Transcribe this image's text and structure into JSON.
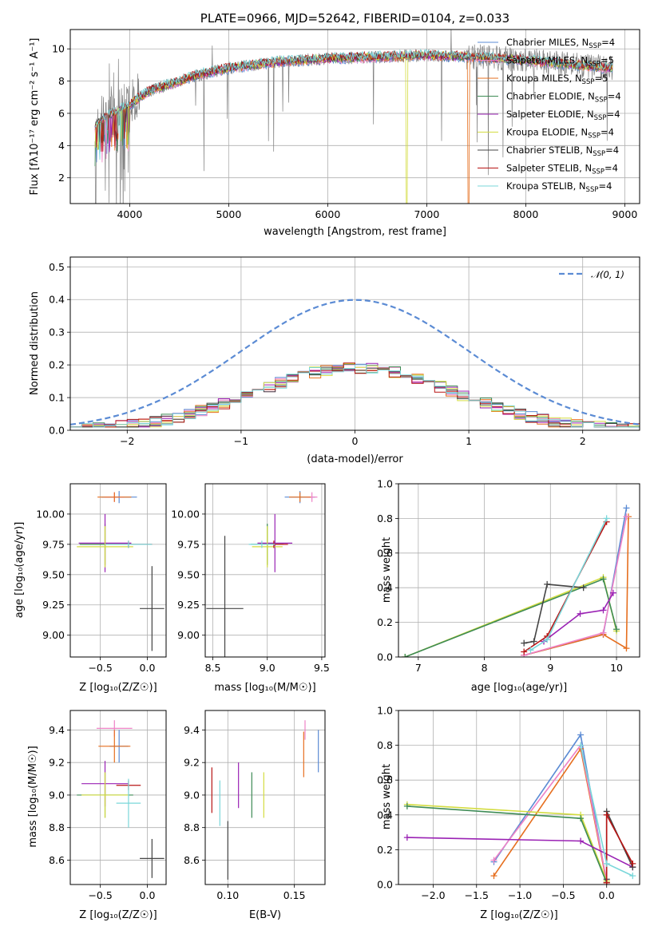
{
  "colors": {
    "Chabrier MILES": "#5b8bd4",
    "Salpeter MILES": "#ee82c6",
    "Kroupa MILES": "#e66f1f",
    "Chabrier ELODIE": "#3e8b55",
    "Salpeter ELODIE": "#9a22b4",
    "Kroupa ELODIE": "#d3dc40",
    "Chabrier STELIB": "#444444",
    "Salpeter STELIB": "#b81414",
    "Kroupa STELIB": "#7ad7da"
  },
  "chart_data": [
    {
      "type": "line",
      "id": "spectrum",
      "title": "PLATE=0966, MJD=52642, FIBERID=0104, z=0.033",
      "xlabel": "wavelength [Angstrom, rest frame]",
      "ylabel": "Flux [fλ10⁻¹⁷ erg cm⁻² s⁻¹ A⁻¹]",
      "xlim": [
        3400,
        9150
      ],
      "ylim": [
        0.4,
        11.2
      ],
      "xticks": [
        4000,
        5000,
        6000,
        7000,
        8000,
        9000
      ],
      "yticks": [
        2,
        4,
        6,
        8,
        10
      ],
      "legend_position": "top-right",
      "legend": [
        {
          "name": "Chabrier MILES",
          "label": "Chabrier MILES, N",
          "sub": "SSP",
          "suffix": "=4"
        },
        {
          "name": "Salpeter MILES",
          "label": "Salpeter MILES, N",
          "sub": "SSP",
          "suffix": "=5"
        },
        {
          "name": "Kroupa MILES",
          "label": "Kroupa MILES, N",
          "sub": "SSP",
          "suffix": "=5"
        },
        {
          "name": "Chabrier ELODIE",
          "label": "Chabrier ELODIE, N",
          "sub": "SSP",
          "suffix": "=4"
        },
        {
          "name": "Salpeter ELODIE",
          "label": "Salpeter ELODIE, N",
          "sub": "SSP",
          "suffix": "=4"
        },
        {
          "name": "Kroupa ELODIE",
          "label": "Kroupa ELODIE, N",
          "sub": "SSP",
          "suffix": "=4"
        },
        {
          "name": "Chabrier STELIB",
          "label": "Chabrier STELIB, N",
          "sub": "SSP",
          "suffix": "=4"
        },
        {
          "name": "Salpeter STELIB",
          "label": "Salpeter STELIB, N",
          "sub": "SSP",
          "suffix": "=4"
        },
        {
          "name": "Kroupa STELIB",
          "label": "Kroupa STELIB, N",
          "sub": "SSP",
          "suffix": "=4"
        }
      ],
      "continuum": {
        "x": [
          3650,
          3700,
          3800,
          3900,
          4000,
          4100,
          4200,
          4300,
          4400,
          4500,
          4700,
          5000,
          5500,
          6000,
          6500,
          7000,
          7500,
          8000,
          8500,
          8850
        ],
        "y": [
          5.2,
          5.5,
          5.9,
          6.2,
          6.5,
          7.0,
          7.4,
          7.6,
          7.8,
          8.0,
          8.4,
          8.8,
          9.2,
          9.4,
          9.5,
          9.6,
          9.5,
          9.3,
          9.0,
          8.8
        ]
      },
      "data_spectrum_color": "#808080",
      "deep_features": [
        {
          "model": "Kroupa ELODIE",
          "x": 6800,
          "ymin": 0.4
        },
        {
          "model": "Kroupa MILES",
          "x": 7420,
          "ymin": 0.4
        }
      ]
    },
    {
      "type": "histogram",
      "id": "residuals",
      "xlabel": "(data-model)/error",
      "ylabel": "Normed distribution",
      "xlim": [
        -2.5,
        2.5
      ],
      "ylim": [
        0,
        0.53
      ],
      "xticks": [
        -2,
        -1,
        0,
        1,
        2
      ],
      "yticks": [
        0.0,
        0.1,
        0.2,
        0.3,
        0.4,
        0.5
      ],
      "bin_width": 0.1,
      "reference": {
        "name": "N(0,1)",
        "label": "𝒩(0, 1)",
        "color": "#5b8bd4",
        "style": "dashed",
        "mean": 0,
        "sigma": 1
      },
      "legend_position": "top-right"
    },
    {
      "type": "scatter",
      "id": "age-vs-Z",
      "xlabel": "Z [log₁₀(Z/Z☉)]",
      "ylabel": "age  [log₁₀(age/yr)]",
      "xlim": [
        -0.82,
        0.2
      ],
      "ylim": [
        8.82,
        10.25
      ],
      "xticks": [
        -0.5,
        0.0
      ],
      "yticks": [
        9.0,
        9.25,
        9.5,
        9.75,
        10.0
      ],
      "points": [
        {
          "model": "Chabrier MILES",
          "x": -0.3,
          "xerr": 0.19,
          "y": 10.14,
          "yerr": 0.05
        },
        {
          "model": "Salpeter MILES",
          "x": -0.35,
          "xerr": 0.1,
          "y": 10.14,
          "yerr": 0.04
        },
        {
          "model": "Kroupa MILES",
          "x": -0.35,
          "xerr": 0.18,
          "y": 10.14,
          "yerr": 0.04
        },
        {
          "model": "Chabrier ELODIE",
          "x": -0.45,
          "xerr": 0.27,
          "y": 9.75,
          "yerr": 0.17
        },
        {
          "model": "Salpeter ELODIE",
          "x": -0.45,
          "xerr": 0.28,
          "y": 9.76,
          "yerr": 0.24
        },
        {
          "model": "Kroupa ELODIE",
          "x": -0.45,
          "xerr": 0.3,
          "y": 9.73,
          "yerr": 0.17
        },
        {
          "model": "Chabrier STELIB",
          "x": 0.05,
          "xerr": 0.13,
          "y": 9.22,
          "yerr": 0.35
        },
        {
          "model": "Salpeter STELIB",
          "x": -0.2,
          "xerr": 0.25,
          "y": 9.75,
          "yerr": 0.03
        },
        {
          "model": "Kroupa STELIB",
          "x": -0.2,
          "xerr": 0.25,
          "y": 9.75,
          "yerr": 0.03
        }
      ]
    },
    {
      "type": "scatter",
      "id": "age-vs-mass",
      "xlabel": "mass [log₁₀(M/M☉)]",
      "xlim": [
        8.43,
        9.53
      ],
      "ylim": [
        8.82,
        10.25
      ],
      "xticks": [
        8.5,
        9.0,
        9.5
      ],
      "yticks": [
        9.0,
        9.25,
        9.5,
        9.75,
        10.0
      ],
      "points": [
        {
          "model": "Chabrier MILES",
          "x": 9.3,
          "xerr": 0.14,
          "y": 10.14,
          "yerr": 0.05
        },
        {
          "model": "Salpeter MILES",
          "x": 9.41,
          "xerr": 0.05,
          "y": 10.14,
          "yerr": 0.04
        },
        {
          "model": "Kroupa MILES",
          "x": 9.3,
          "xerr": 0.1,
          "y": 10.14,
          "yerr": 0.04
        },
        {
          "model": "Chabrier ELODIE",
          "x": 9.0,
          "xerr": 0.15,
          "y": 9.75,
          "yerr": 0.17
        },
        {
          "model": "Salpeter ELODIE",
          "x": 9.07,
          "xerr": 0.16,
          "y": 9.76,
          "yerr": 0.24
        },
        {
          "model": "Kroupa ELODIE",
          "x": 9.0,
          "xerr": 0.14,
          "y": 9.73,
          "yerr": 0.17
        },
        {
          "model": "Chabrier STELIB",
          "x": 8.61,
          "xerr": 0.17,
          "y": 9.22,
          "yerr": 0.6
        },
        {
          "model": "Salpeter STELIB",
          "x": 9.06,
          "xerr": 0.13,
          "y": 9.75,
          "yerr": 0.03
        },
        {
          "model": "Kroupa STELIB",
          "x": 8.95,
          "xerr": 0.12,
          "y": 9.75,
          "yerr": 0.03
        }
      ]
    },
    {
      "type": "line",
      "id": "weight-vs-age",
      "xlabel": "age  [log₁₀(age/yr)]",
      "ylabel": "mass weight",
      "xlim": [
        6.7,
        10.35
      ],
      "ylim": [
        0,
        1.0
      ],
      "xticks": [
        7,
        8,
        9,
        10
      ],
      "yticks": [
        0.0,
        0.2,
        0.4,
        0.6,
        0.8,
        1.0
      ],
      "series": [
        {
          "name": "Chabrier MILES",
          "x": [
            8.6,
            9.8,
            10.15
          ],
          "y": [
            0.01,
            0.13,
            0.86
          ]
        },
        {
          "name": "Kroupa MILES",
          "x": [
            8.6,
            9.8,
            10.15,
            10.18
          ],
          "y": [
            0.01,
            0.13,
            0.05,
            0.81
          ]
        },
        {
          "name": "Salpeter MILES",
          "x": [
            8.6,
            9.8,
            10.15
          ],
          "y": [
            0.01,
            0.14,
            0.81
          ]
        },
        {
          "name": "Kroupa ELODIE",
          "x": [
            6.8,
            9.8,
            10.0
          ],
          "y": [
            0.0,
            0.46,
            0.15
          ]
        },
        {
          "name": "Chabrier ELODIE",
          "x": [
            6.8,
            9.8,
            10.0
          ],
          "y": [
            0.0,
            0.45,
            0.16
          ]
        },
        {
          "name": "Salpeter ELODIE",
          "x": [
            8.9,
            9.45,
            9.8,
            9.95
          ],
          "y": [
            0.09,
            0.25,
            0.27,
            0.37
          ]
        },
        {
          "name": "Chabrier STELIB",
          "x": [
            8.6,
            8.75,
            8.95,
            9.5
          ],
          "y": [
            0.08,
            0.09,
            0.42,
            0.4
          ]
        },
        {
          "name": "Salpeter STELIB",
          "x": [
            8.6,
            8.95,
            9.85
          ],
          "y": [
            0.03,
            0.12,
            0.78
          ]
        },
        {
          "name": "Kroupa STELIB",
          "x": [
            8.7,
            8.95,
            9.85
          ],
          "y": [
            0.04,
            0.1,
            0.8
          ]
        }
      ]
    },
    {
      "type": "scatter",
      "id": "mass-vs-Z",
      "xlabel": "Z [log₁₀(Z/Z☉)]",
      "ylabel": "mass [log₁₀(M/M☉)]",
      "xlim": [
        -0.82,
        0.2
      ],
      "ylim": [
        8.45,
        9.52
      ],
      "xticks": [
        -0.5,
        0.0
      ],
      "yticks": [
        8.6,
        8.8,
        9.0,
        9.2,
        9.4
      ],
      "points": [
        {
          "model": "Chabrier MILES",
          "x": -0.3,
          "xerr": 0.1,
          "y": 9.3,
          "yerr": 0.1
        },
        {
          "model": "Salpeter MILES",
          "x": -0.35,
          "xerr": 0.19,
          "y": 9.41,
          "yerr": 0.05
        },
        {
          "model": "Kroupa MILES",
          "x": -0.35,
          "xerr": 0.17,
          "y": 9.3,
          "yerr": 0.1
        },
        {
          "model": "Chabrier ELODIE",
          "x": -0.45,
          "xerr": 0.3,
          "y": 9.0,
          "yerr": 0.14
        },
        {
          "model": "Salpeter ELODIE",
          "x": -0.45,
          "xerr": 0.25,
          "y": 9.07,
          "yerr": 0.14
        },
        {
          "model": "Kroupa ELODIE",
          "x": -0.45,
          "xerr": 0.25,
          "y": 9.0,
          "yerr": 0.14
        },
        {
          "model": "Chabrier STELIB",
          "x": 0.05,
          "xerr": 0.13,
          "y": 8.61,
          "yerr": 0.12
        },
        {
          "model": "Salpeter STELIB",
          "x": -0.2,
          "xerr": 0.13,
          "y": 9.06,
          "yerr": 0.03
        },
        {
          "model": "Kroupa STELIB",
          "x": -0.2,
          "xerr": 0.13,
          "y": 8.95,
          "yerr": 0.15
        }
      ]
    },
    {
      "type": "scatter",
      "id": "mass-vs-ebv",
      "xlabel": "E(B-V)",
      "xlim": [
        0.083,
        0.173
      ],
      "ylim": [
        8.45,
        9.52
      ],
      "xticks": [
        0.1,
        0.15
      ],
      "yticks": [
        8.6,
        8.8,
        9.0,
        9.2,
        9.4
      ],
      "points": [
        {
          "model": "Chabrier MILES",
          "x": 0.168,
          "xerr": 0,
          "y": 9.27,
          "yerr": 0.13
        },
        {
          "model": "Salpeter MILES",
          "x": 0.158,
          "xerr": 0,
          "y": 9.4,
          "yerr": 0.06
        },
        {
          "model": "Kroupa MILES",
          "x": 0.157,
          "xerr": 0,
          "y": 9.25,
          "yerr": 0.14
        },
        {
          "model": "Chabrier ELODIE",
          "x": 0.118,
          "xerr": 0,
          "y": 9.0,
          "yerr": 0.14
        },
        {
          "model": "Salpeter ELODIE",
          "x": 0.108,
          "xerr": 0,
          "y": 9.06,
          "yerr": 0.14
        },
        {
          "model": "Kroupa ELODIE",
          "x": 0.127,
          "xerr": 0,
          "y": 9.0,
          "yerr": 0.14
        },
        {
          "model": "Chabrier STELIB",
          "x": 0.1,
          "xerr": 0,
          "y": 8.66,
          "yerr": 0.18
        },
        {
          "model": "Salpeter STELIB",
          "x": 0.088,
          "xerr": 0,
          "y": 9.03,
          "yerr": 0.14
        },
        {
          "model": "Kroupa STELIB",
          "x": 0.094,
          "xerr": 0,
          "y": 8.95,
          "yerr": 0.14
        }
      ]
    },
    {
      "type": "line",
      "id": "weight-vs-Z",
      "xlabel": "Z [log₁₀(Z/Z☉)]",
      "ylabel": "mass weight",
      "xlim": [
        -2.4,
        0.38
      ],
      "ylim": [
        0,
        1.0
      ],
      "xticks": [
        -2.0,
        -1.5,
        -1.0,
        -0.5,
        0.0
      ],
      "yticks": [
        0.0,
        0.2,
        0.4,
        0.6,
        0.8,
        1.0
      ],
      "series": [
        {
          "name": "Chabrier MILES",
          "x": [
            -1.3,
            -0.3,
            0.0
          ],
          "y": [
            0.13,
            0.86,
            0.01
          ]
        },
        {
          "name": "Kroupa MILES",
          "x": [
            -1.3,
            -0.3,
            0.0
          ],
          "y": [
            0.05,
            0.78,
            0.01
          ]
        },
        {
          "name": "Salpeter MILES",
          "x": [
            -1.3,
            -0.3,
            0.0
          ],
          "y": [
            0.14,
            0.8,
            0.02
          ]
        },
        {
          "name": "Kroupa ELODIE",
          "x": [
            -2.3,
            -0.3,
            0.0
          ],
          "y": [
            0.46,
            0.4,
            0.02
          ]
        },
        {
          "name": "Chabrier ELODIE",
          "x": [
            -2.3,
            -0.3,
            0.0
          ],
          "y": [
            0.45,
            0.38,
            0.01
          ]
        },
        {
          "name": "Salpeter ELODIE",
          "x": [
            -2.3,
            -0.3,
            0.3
          ],
          "y": [
            0.27,
            0.25,
            0.1
          ]
        },
        {
          "name": "Chabrier STELIB",
          "x": [
            0.0,
            0.0,
            0.3
          ],
          "y": [
            0.03,
            0.42,
            0.1
          ]
        },
        {
          "name": "Salpeter STELIB",
          "x": [
            0.0,
            0.0,
            0.3
          ],
          "y": [
            0.01,
            0.4,
            0.12
          ]
        },
        {
          "name": "Kroupa STELIB",
          "x": [
            -0.3,
            0.0,
            0.3
          ],
          "y": [
            0.8,
            0.12,
            0.05
          ]
        }
      ]
    }
  ]
}
